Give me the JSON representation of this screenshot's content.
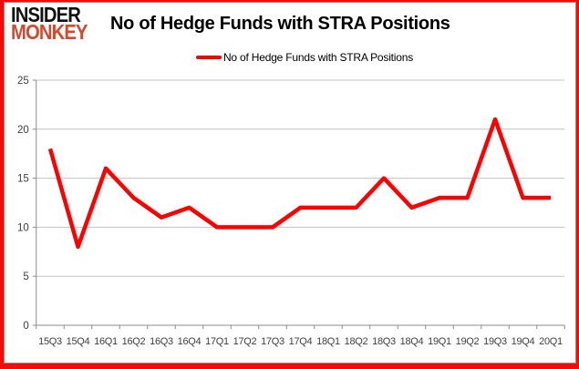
{
  "logo": {
    "line1": "INSIDER",
    "line2": "MONKEY"
  },
  "header": {
    "title": "No of Hedge Funds with STRA Positions"
  },
  "legend": {
    "label": "No of Hedge Funds with STRA Positions"
  },
  "colors": {
    "line": "#ff0000",
    "frame": "#f70a05",
    "grid": "#c3c3c3",
    "axis": "#8c8c8c",
    "tick_label": "#404040",
    "logo_black": "#111111",
    "logo_red": "#d2492e",
    "title_color": "#000000"
  },
  "chart_data": {
    "type": "line",
    "title": "No of Hedge Funds with STRA Positions",
    "xlabel": "",
    "ylabel": "",
    "categories": [
      "15Q3",
      "15Q4",
      "16Q1",
      "16Q2",
      "16Q3",
      "16Q4",
      "17Q1",
      "17Q2",
      "17Q3",
      "17Q4",
      "18Q1",
      "18Q2",
      "18Q3",
      "18Q4",
      "19Q1",
      "19Q2",
      "19Q3",
      "19Q4",
      "20Q1"
    ],
    "series": [
      {
        "name": "No of Hedge Funds with STRA Positions",
        "color": "#ff0000",
        "values": [
          18,
          8,
          16,
          13,
          11,
          12,
          10,
          10,
          10,
          12,
          12,
          12,
          15,
          12,
          13,
          13,
          21,
          13,
          13
        ]
      }
    ],
    "ylim": [
      0,
      25
    ],
    "yticks": [
      0,
      5,
      10,
      15,
      20,
      25
    ],
    "grid": true,
    "legend_position": "top-center"
  }
}
